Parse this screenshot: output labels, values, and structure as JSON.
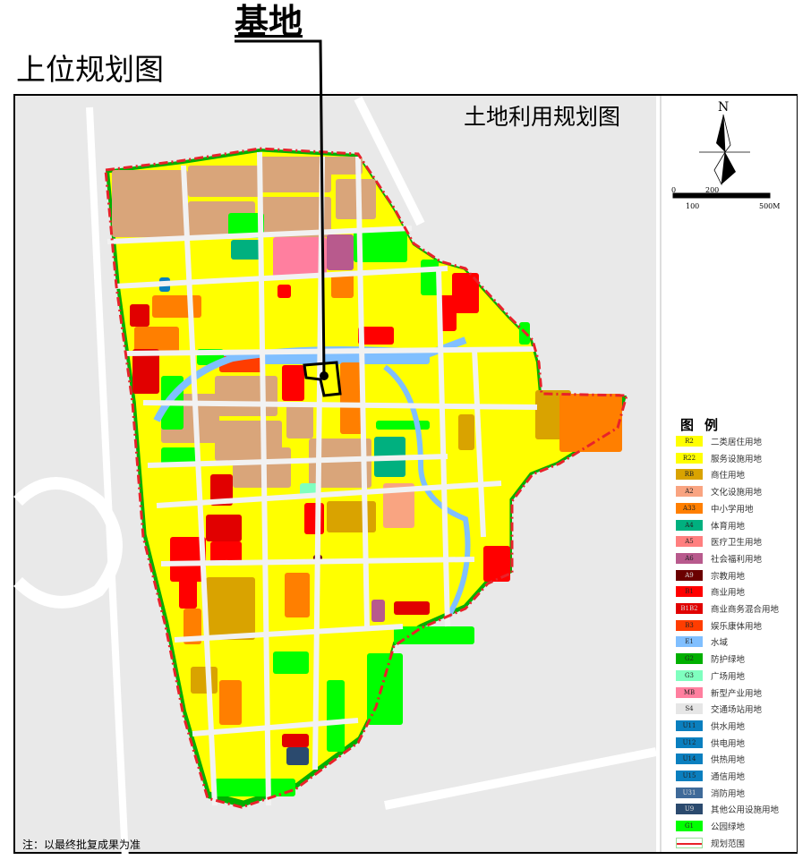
{
  "header": {
    "site_label": "基地",
    "upper_plan_title": "上位规划图"
  },
  "map": {
    "title": "土地利用规划图",
    "north_label": "N",
    "scale": {
      "labels": [
        "0",
        "200",
        "100",
        "500M"
      ]
    },
    "boundary_color": "#e8222a",
    "note": "注：以最终批复成果为准"
  },
  "legend": {
    "title": "图例",
    "items": [
      {
        "code": "R2",
        "label": "二类居住用地",
        "color": "#ffff00"
      },
      {
        "code": "R22",
        "label": "服务设施用地",
        "color": "#ffff00"
      },
      {
        "code": "RB",
        "label": "商住用地",
        "color": "#d9a300"
      },
      {
        "code": "A2",
        "label": "文化设施用地",
        "color": "#f9a481"
      },
      {
        "code": "A33",
        "label": "中小学用地",
        "color": "#ff7f00"
      },
      {
        "code": "A4",
        "label": "体育用地",
        "color": "#00b07f"
      },
      {
        "code": "A5",
        "label": "医疗卫生用地",
        "color": "#ff7f7f"
      },
      {
        "code": "A6",
        "label": "社会福利用地",
        "color": "#b85a8d"
      },
      {
        "code": "A9",
        "label": "宗教用地",
        "color": "#6b0000"
      },
      {
        "code": "B1",
        "label": "商业用地",
        "color": "#ff0000"
      },
      {
        "code": "B1B2",
        "label": "商业商务混合用地",
        "color": "#e10000"
      },
      {
        "code": "B3",
        "label": "娱乐康体用地",
        "color": "#ff3d00"
      },
      {
        "code": "E1",
        "label": "水域",
        "color": "#80bfff"
      },
      {
        "code": "G2",
        "label": "防护绿地",
        "color": "#00b000"
      },
      {
        "code": "G3",
        "label": "广场用地",
        "color": "#7fffbf"
      },
      {
        "code": "MB",
        "label": "新型产业用地",
        "color": "#ff7f9f"
      },
      {
        "code": "S4",
        "label": "交通场站用地",
        "color": "#e6e6e6"
      },
      {
        "code": "U11",
        "label": "供水用地",
        "color": "#0a7fbf"
      },
      {
        "code": "U12",
        "label": "供电用地",
        "color": "#0a7fbf"
      },
      {
        "code": "U14",
        "label": "供热用地",
        "color": "#0a7fbf"
      },
      {
        "code": "U15",
        "label": "通信用地",
        "color": "#0a7fbf"
      },
      {
        "code": "U31",
        "label": "消防用地",
        "color": "#3f6a99"
      },
      {
        "code": "U9",
        "label": "其他公用设施用地",
        "color": "#2b4a6e"
      },
      {
        "code": "G1",
        "label": "公园绿地",
        "color": "#00ff00"
      },
      {
        "code": "",
        "label": "规划范围",
        "color": "#e8222a"
      }
    ]
  }
}
